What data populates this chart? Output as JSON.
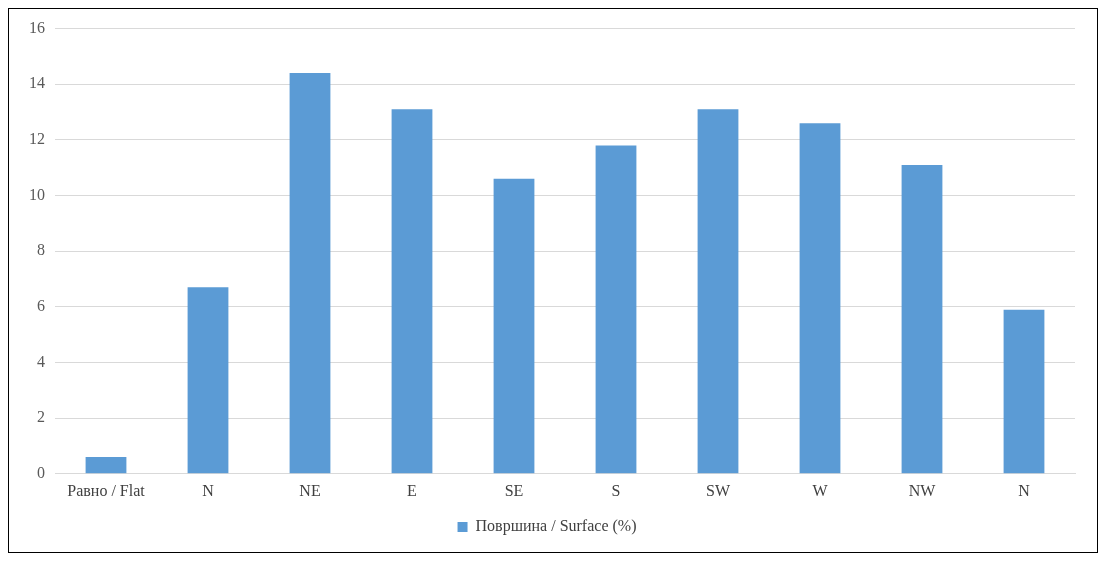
{
  "chart_data": {
    "type": "bar",
    "categories": [
      "Равно / Flat",
      "N",
      "NE",
      "E",
      "SE",
      "S",
      "SW",
      "W",
      "NW",
      "N"
    ],
    "series": [
      {
        "name": "Површина / Surface (%)",
        "color": "#5b9bd5",
        "values": [
          0.6,
          6.7,
          14.4,
          13.1,
          10.6,
          11.8,
          13.1,
          12.6,
          11.1,
          5.9
        ]
      }
    ],
    "ylim": [
      0,
      16
    ],
    "yticks": [
      0,
      2,
      4,
      6,
      8,
      10,
      12,
      14,
      16
    ],
    "grid": "y",
    "legend": "bottom"
  }
}
